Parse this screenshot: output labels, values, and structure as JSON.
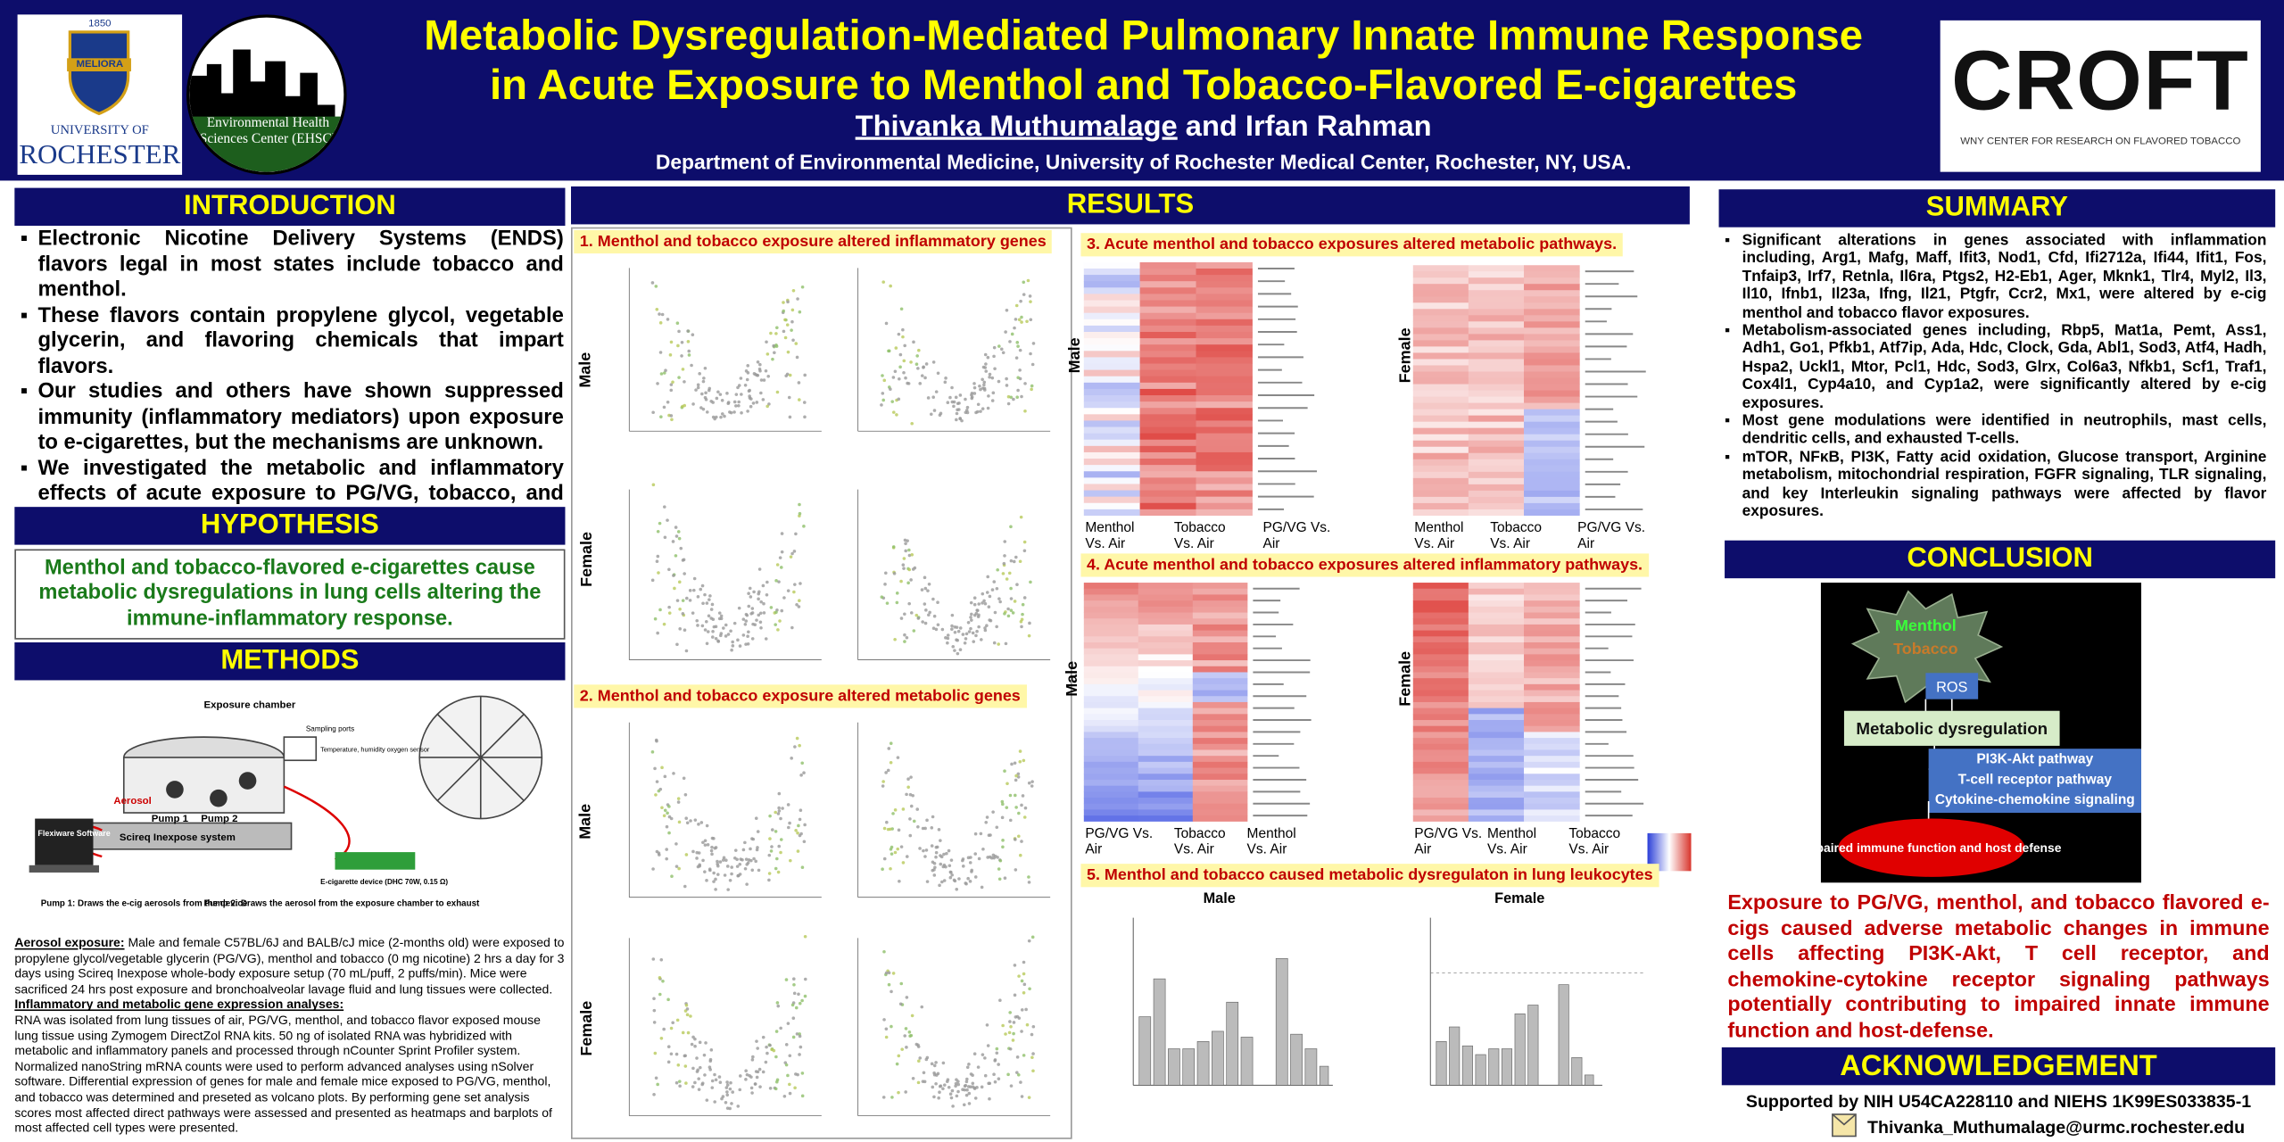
{
  "header": {
    "title_line1": "Metabolic Dysregulation-Mediated Pulmonary Innate Immune Response",
    "title_line2": "in Acute Exposure to Menthol and Tobacco-Flavored E-cigarettes",
    "author_main": "Thivanka Muthumalage",
    "author_rest": "and Irfan Rahman",
    "department": "Department of Environmental Medicine, University of Rochester Medical Center,  Rochester, NY, USA."
  },
  "logos": {
    "rochester_year": "1850",
    "rochester_motto": "MELIORA",
    "rochester_name1": "UNIVERSITY OF",
    "rochester_name2": "ROCHESTER",
    "ehsc": "Environmental Health Sciences Center (EHSC)",
    "croft": "CROFT",
    "croft_sub": "WNY CENTER FOR RESEARCH ON FLAVORED TOBACCO"
  },
  "introduction": {
    "heading": "INTRODUCTION",
    "bullets": [
      "Electronic Nicotine Delivery Systems (ENDS) flavors legal in most states include tobacco and menthol.",
      "These flavors contain propylene glycol, vegetable glycerin, and flavoring chemicals that impart flavors.",
      "Our studies and others have shown suppressed immunity (inflammatory mediators) upon exposure to e-cigarettes, but the mechanisms are unknown.",
      "We investigated the metabolic and inflammatory effects of acute exposure to PG/VG, tobacco, and menthol flavors."
    ]
  },
  "hypothesis": {
    "heading": "HYPOTHESIS",
    "text": "Menthol and tobacco-flavored e-cigarettes cause metabolic dysregulations in lung cells altering the immune-inflammatory response."
  },
  "methods": {
    "heading": "METHODS",
    "figure": {
      "chamber": "Exposure chamber",
      "ports": "Sampling ports",
      "sensor": "Temperature, humidity oxygen sensor",
      "aerosol": "Aerosol",
      "pump1": "Pump 1",
      "pump2": "Pump 2",
      "software": "Flexiware Software",
      "system": "Scireq Inexpose system",
      "device": "E-cigarette device (DHC 70W, 0.15 Ω)",
      "pump1_note": "Pump 1: Draws the e-cig aerosols from the device",
      "pump2_note": "Pump 2: Draws the aerosol from the exposure chamber to exhaust"
    },
    "aerosol_heading": "Aerosol exposure:",
    "aerosol_text": " Male and female C57BL/6J and BALB/cJ mice (2-months old) were exposed to propylene glycol/vegetable glycerin (PG/VG), menthol and tobacco (0 mg nicotine) 2 hrs a day for 3 days using Scireq Inexpose whole-body exposure setup (70 mL/puff, 2 puffs/min). Mice were sacrificed 24 hrs post exposure and bronchoalveolar lavage fluid and lung tissues were collected.",
    "analysis_heading": "Inflammatory and metabolic gene expression analyses:",
    "analysis_text": "RNA was isolated from lung tissues of air, PG/VG, menthol, and tobacco flavor exposed mouse lung tissue using Zymogem DirectZol RNA kits. 50 ng of isolated RNA was hybridized with metabolic and inflammatory panels  and processed through nCounter Sprint Profiler system. Normalized nanoString mRNA counts were used to perform advanced analyses using nSolver software. Differential expression of genes for male and female mice exposed to PG/VG, menthol, and tobacco was determined and preseted as volcano plots. By performing gene set analysis scores most affected direct pathways were assessed and presented as heatmaps and barplots of most affected cell types were presented."
  },
  "results": {
    "heading": "RESULTS",
    "panel1": {
      "title": "1. Menthol and tobacco exposure altered inflammatory genes",
      "male": "Male",
      "female": "Female"
    },
    "panel2": {
      "title": "2. Menthol and tobacco exposure altered metabolic genes",
      "male": "Male",
      "female": "Female"
    },
    "panel3": {
      "title": "3. Acute menthol and tobacco exposures altered metabolic pathways.",
      "male": "Male",
      "female": "Female",
      "male_cols": [
        "Menthol Vs. Air",
        "Tobacco Vs. Air",
        "PG/VG Vs. Air"
      ],
      "female_cols": [
        "Menthol Vs. Air",
        "Tobacco Vs. Air",
        "PG/VG Vs. Air"
      ]
    },
    "panel4": {
      "title": "4. Acute menthol and tobacco exposures altered inflammatory pathways.",
      "male": "Male",
      "female": "Female",
      "male_cols": [
        "PG/VG Vs. Air",
        "Tobacco Vs. Air",
        "Menthol Vs. Air"
      ],
      "female_cols": [
        "PG/VG Vs. Air",
        "Menthol Vs. Air",
        "Tobacco Vs. Air"
      ]
    },
    "panel5": {
      "title": "5. Menthol and tobacco caused metabolic dysregulaton in lung leukocytes",
      "male": "Male",
      "female": "Female"
    }
  },
  "summary": {
    "heading": "SUMMARY",
    "bullets": [
      "Significant alterations in genes associated with inflammation including, Arg1, Mafg, Maff, Ifit3, Nod1, Cfd, Ifi2712a, Ifi44, Ifit1, Fos, Tnfaip3, Irf7, Retnla, Il6ra, Ptgs2, H2-Eb1, Ager, Mknk1, Tlr4, Myl2, Il3, Il10, Ifnb1, Il23a, Ifng, Il21, Ptgfr, Ccr2, Mx1, were altered by e-cig menthol and tobacco flavor exposures.",
      "Metabolism-associated genes including, Rbp5, Mat1a, Pemt, Ass1, Adh1, Go1, Pfkb1, Atf7ip, Ada, Hdc, Clock, Gda, Abl1, Sod3, Atf4, Hadh, Hspa2, Uckl1, Mtor, Pcl1, Hdc, Sod3, Glrx, Col6a3, Nfkb1, Scf1, Traf1, Cox4l1, Cyp4a10, and Cyp1a2, were significantly altered by e-cig exposures.",
      "Most gene modulations were identified in neutrophils, mast cells, dendritic cells, and exhausted T-cells.",
      "mTOR, NFκB, PI3K, Fatty acid oxidation, Glucose transport, Arginine metabolism, mitochondrial respiration, FGFR signaling, TLR signaling, and key Interleukin signaling pathways were affected by flavor exposures."
    ]
  },
  "conclusion": {
    "heading": "CONCLUSION",
    "diagram": {
      "menthol": "Menthol",
      "tobacco": "Tobacco",
      "ros": "ROS",
      "metabolic": "Metabolic dysregulation",
      "pathways": [
        "PI3K-Akt pathway",
        "T-cell receptor pathway",
        "Cytokine-chemokine signaling"
      ],
      "outcome": "Impaired immune function and host defense"
    },
    "text": "Exposure to PG/VG, menthol, and tobacco flavored e-cigs caused adverse metabolic changes in immune cells affecting PI3K-Akt, T cell receptor, and chemokine-cytokine receptor signaling pathways potentially contributing to impaired innate immune function and host-defense."
  },
  "acknowledgement": {
    "heading": "ACKNOWLEDGEMENT",
    "support": "Supported by NIH U54CA228110 and NIEHS 1K99ES033835-1",
    "email": "Thivanka_Muthumalage@urmc.rochester.edu"
  }
}
